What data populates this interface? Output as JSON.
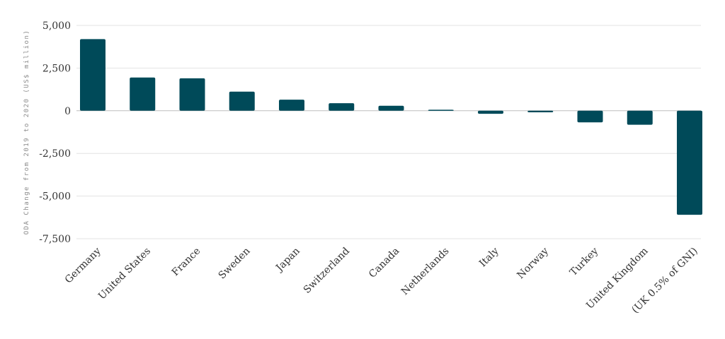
{
  "chart_data": {
    "type": "bar",
    "title": "",
    "xlabel": "",
    "ylabel": "ODA Change from 2019 to 2020 (US$ million)",
    "categories": [
      "Germany",
      "United States",
      "France",
      "Sweden",
      "Japan",
      "Switzerland",
      "Canada",
      "Netherlands",
      "Italy",
      "Norway",
      "Turkey",
      "United Kingdom",
      "(UK 0.5% of GNI)"
    ],
    "values": [
      4200,
      1950,
      1900,
      1120,
      650,
      440,
      290,
      60,
      -180,
      -90,
      -680,
      -820,
      -6100
    ],
    "ylim": [
      -7500,
      5000
    ],
    "yticks": [
      5000,
      2500,
      0,
      -2500,
      -5000,
      -7500
    ],
    "ytick_labels": [
      "5,000",
      "2,500",
      "0",
      "-2,500",
      "-5,000",
      "-7,500"
    ],
    "grid": true,
    "legend": "none",
    "bar_color": "#004a59"
  }
}
